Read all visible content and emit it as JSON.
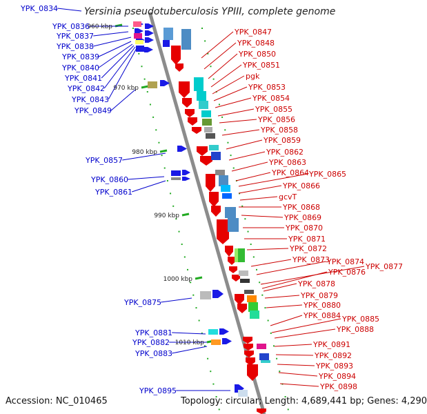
{
  "title": "Yersinia pseudotuberculosis YPIII, complete genome",
  "footer": {
    "accession": "Accession: NC_010465",
    "summary": "Topology: circular; Length: 4,689,441 bp; Genes: 4,290"
  },
  "ticks": [
    "960 kbp",
    "970 kbp",
    "980 kbp",
    "990 kbp",
    "1000 kbp",
    "1010 kbp"
  ],
  "left_labels": [
    "YPK_0834",
    "YPK_0836",
    "YPK_0837",
    "YPK_0838",
    "YPK_0839",
    "YPK_0840",
    "YPK_0841",
    "YPK_0842",
    "YPK_0843",
    "YPK_0849",
    "YPK_0857",
    "YPK_0860",
    "YPK_0861",
    "YPK_0875",
    "YPK_0881",
    "YPK_0882",
    "YPK_0883",
    "YPK_0895"
  ],
  "right_labels": [
    "YPK_0847",
    "YPK_0848",
    "YPK_0850",
    "YPK_0851",
    "pgk",
    "YPK_0853",
    "YPK_0854",
    "YPK_0855",
    "YPK_0856",
    "YPK_0858",
    "YPK_0859",
    "YPK_0862",
    "YPK_0863",
    "YPK_0864",
    "YPK_0865",
    "YPK_0866",
    "gcvT",
    "YPK_0868",
    "YPK_0869",
    "YPK_0870",
    "YPK_0871",
    "YPK_0872",
    "YPK_0873",
    "YPK_0874",
    "YPK_0877",
    "YPK_0876",
    "YPK_0878",
    "YPK_0879",
    "YPK_0880",
    "YPK_0884",
    "YPK_0885",
    "YPK_0888",
    "YPK_0891",
    "YPK_0892",
    "YPK_0893",
    "YPK_0894",
    "YPK_0898"
  ],
  "colors": {
    "forward": "#1a1ae6",
    "reverse": "#e60000",
    "backbone": "#8c8c8c",
    "label_forward": "#0000cc",
    "label_reverse": "#cc0000",
    "tick": "#22aa22"
  }
}
